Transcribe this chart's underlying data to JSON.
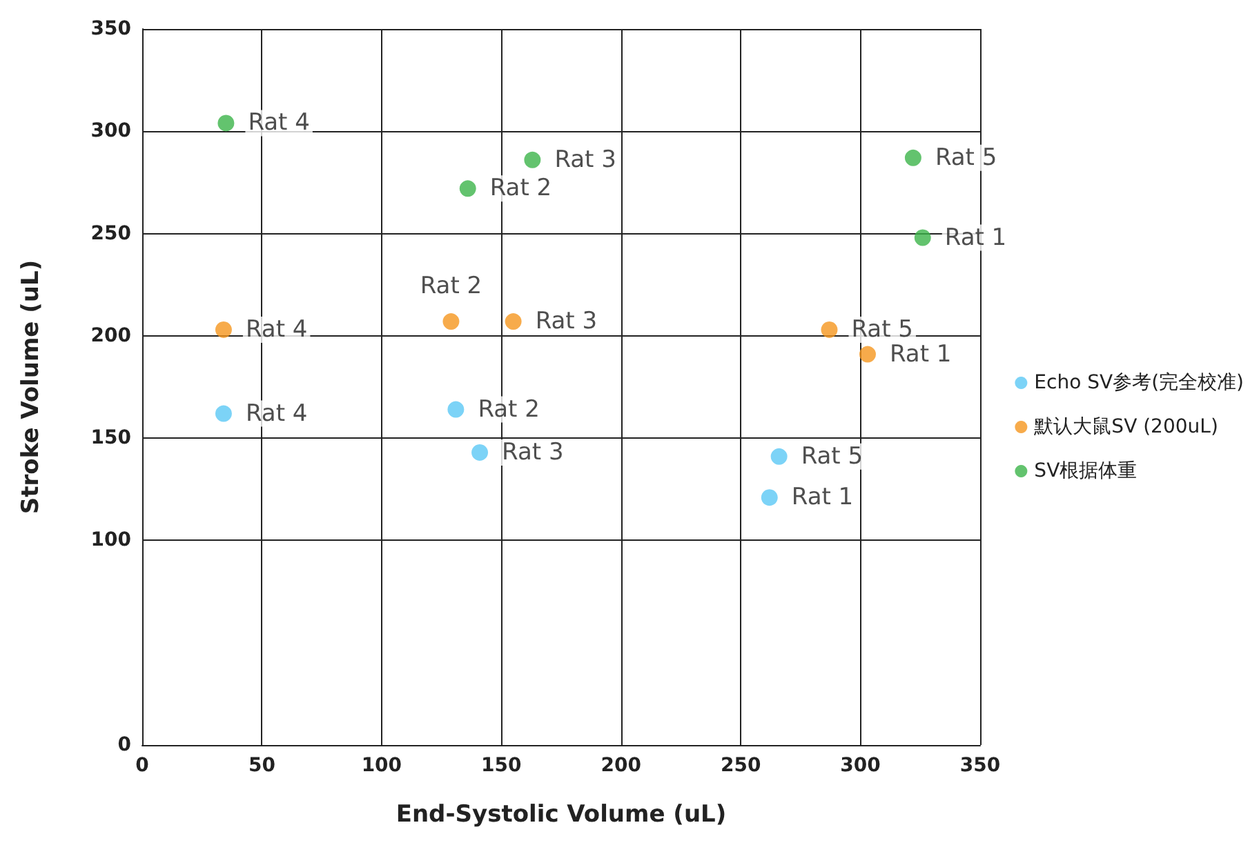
{
  "chart_data": {
    "type": "scatter",
    "xlabel": "End-Systolic Volume (uL)",
    "ylabel": "Stroke Volume (uL)",
    "xlim": [
      0,
      350
    ],
    "xticks": [
      0,
      50,
      100,
      150,
      200,
      250,
      300,
      350
    ],
    "ylim": [
      0,
      350
    ],
    "yticks": [
      0,
      100,
      150,
      200,
      250,
      300,
      350
    ],
    "grid": true,
    "legend": "right",
    "marker": "circle",
    "series": [
      {
        "name": "Echo SV参考(完全校准)",
        "color": "#5bc8f5",
        "x": [
          262,
          131,
          141,
          34,
          266
        ],
        "values": [
          121,
          164,
          143,
          162,
          141
        ],
        "value_labels": [
          "Rat 1",
          "Rat 2",
          "Rat 3",
          "Rat 4",
          "Rat 5"
        ]
      },
      {
        "name": "默认大鼠SV (200uL)",
        "color": "#f5961e",
        "x": [
          303,
          129,
          155,
          34,
          287
        ],
        "values": [
          191,
          207,
          207,
          203,
          203
        ],
        "value_labels": [
          "Rat 1",
          "Rat 2",
          "Rat 3",
          "Rat 4",
          "Rat 5"
        ]
      },
      {
        "name": "SV根据体重",
        "color": "#3cb44a",
        "x": [
          326,
          136,
          163,
          35,
          322
        ],
        "values": [
          248,
          272,
          286,
          304,
          287
        ],
        "value_labels": [
          "Rat 1",
          "Rat 2",
          "Rat 3",
          "Rat 4",
          "Rat 5"
        ]
      }
    ]
  }
}
